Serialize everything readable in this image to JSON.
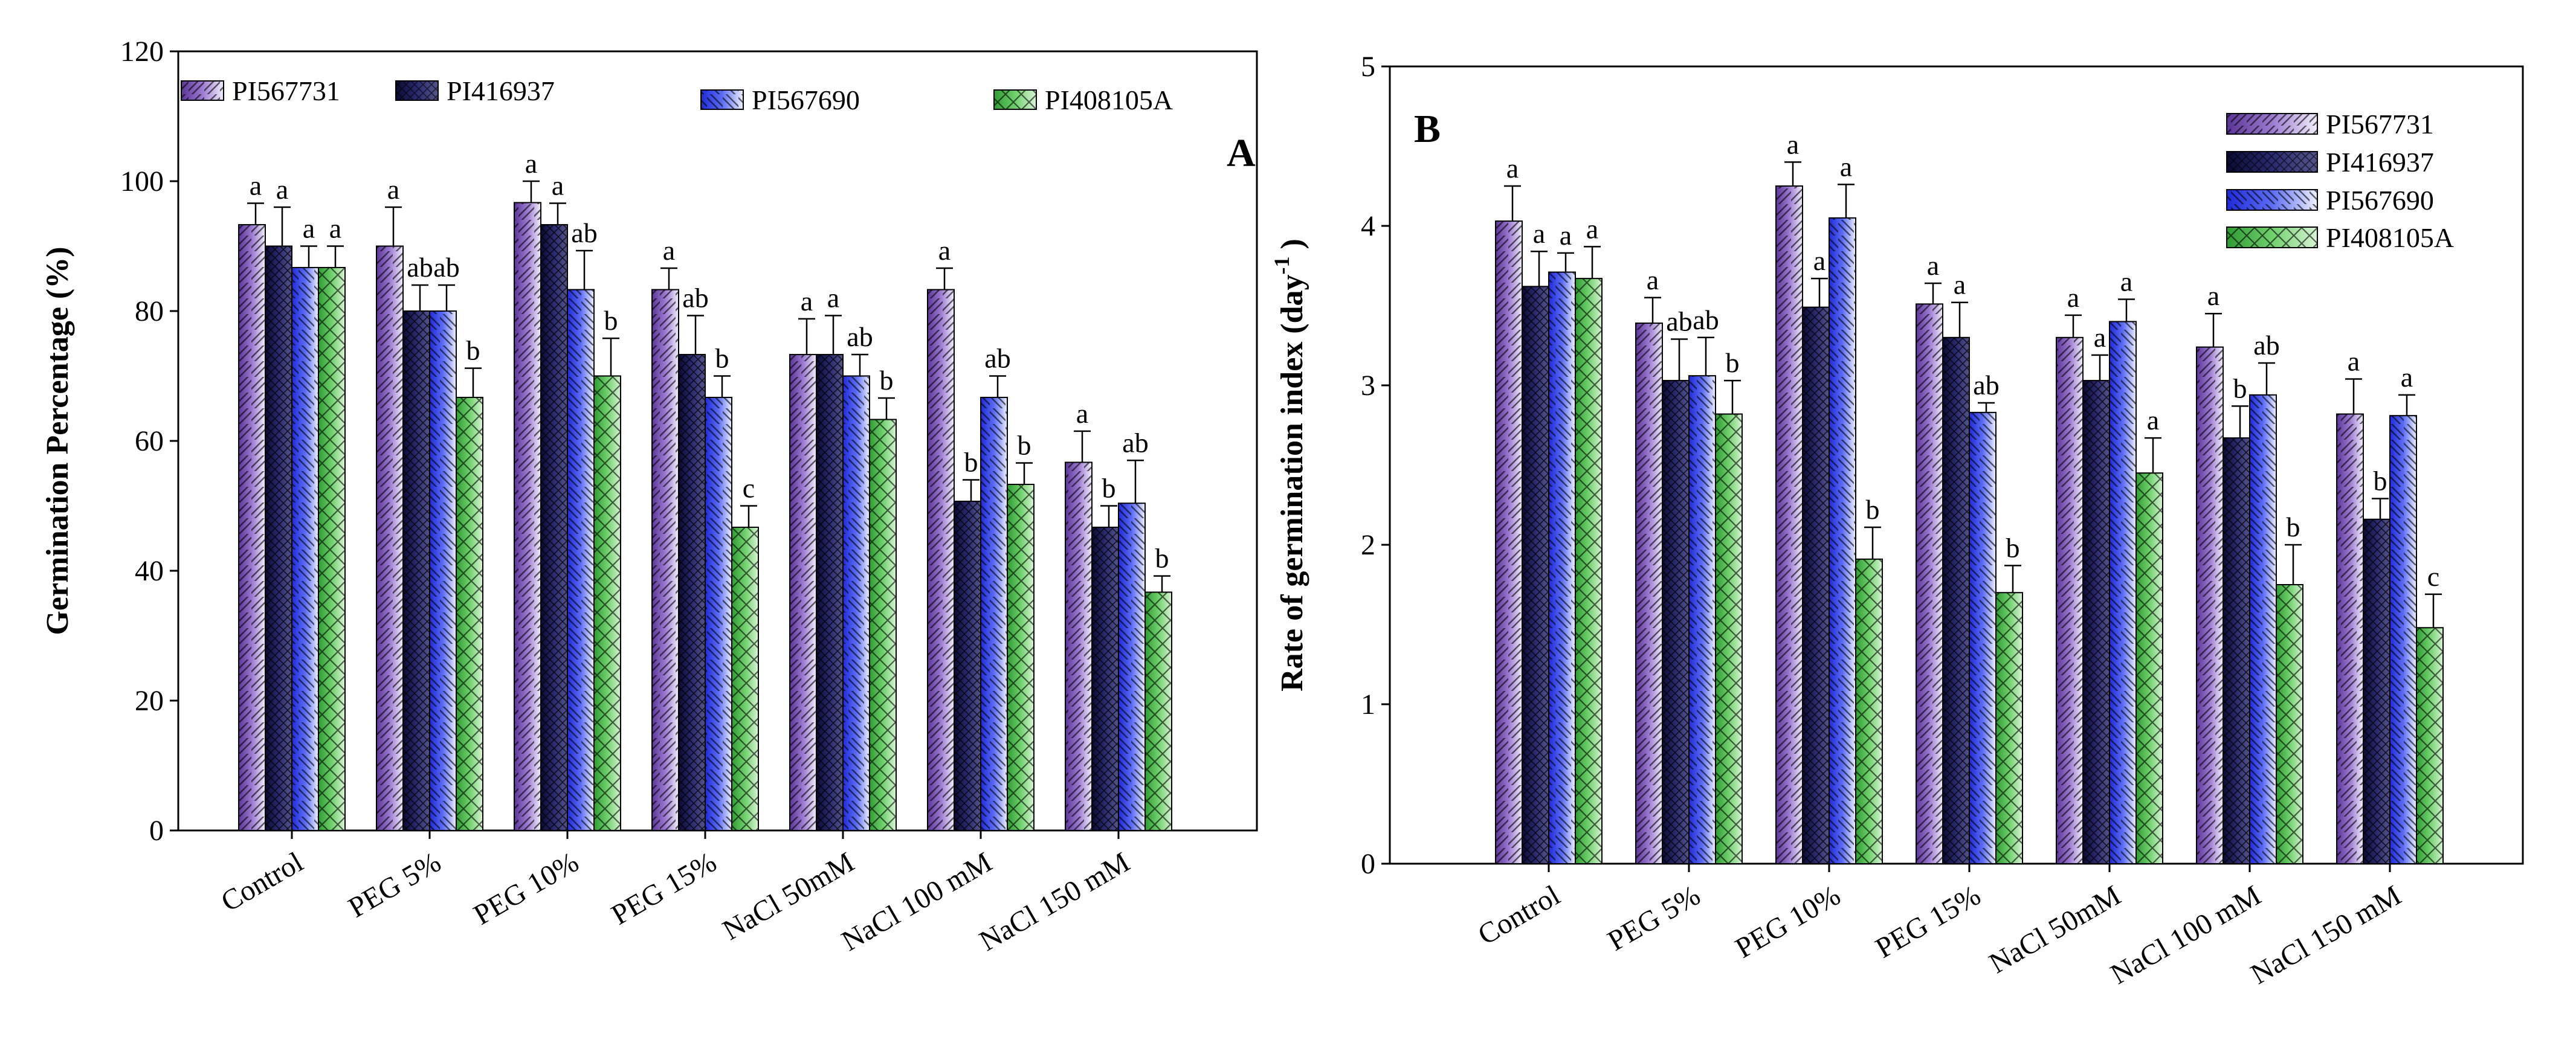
{
  "chart_data": [
    {
      "type": "bar",
      "panel": "A",
      "title": "",
      "xlabel": "",
      "ylabel": "Germination Percentage (%)",
      "ylim": [
        0,
        120
      ],
      "yticks": [
        "0",
        "20",
        "40",
        "60",
        "80",
        "100",
        "120"
      ],
      "categories": [
        "Control",
        "PEG 5%",
        "PEG 10%",
        "PEG 15%",
        "NaCl  50mM",
        "NaCl  100  mM",
        "NaCl  150  mM"
      ],
      "legend_position": "top",
      "series": [
        {
          "name": "PI567731",
          "values": [
            93.3,
            90,
            96.7,
            83.3,
            73.3,
            83.3,
            56.7
          ],
          "errors": [
            3.3,
            6,
            3.3,
            3.3,
            5.5,
            3.3,
            4.8
          ],
          "letters": [
            "a",
            "a",
            "a",
            "a",
            "a",
            "a",
            "a"
          ]
        },
        {
          "name": "PI416937",
          "values": [
            90,
            80,
            93.3,
            73.3,
            73.3,
            50.7,
            46.7
          ],
          "errors": [
            6,
            4,
            3.3,
            6,
            6,
            3.3,
            3.3
          ],
          "letters": [
            "a",
            "ab",
            "a",
            "ab",
            "a",
            "b",
            "b"
          ]
        },
        {
          "name": "PI567690",
          "values": [
            86.7,
            80,
            83.3,
            66.7,
            70,
            66.7,
            50.4
          ],
          "errors": [
            3.3,
            4,
            6,
            3.3,
            3.3,
            3.3,
            6.6
          ],
          "letters": [
            "a",
            "ab",
            "ab",
            "b",
            "ab",
            "ab",
            "ab"
          ]
        },
        {
          "name": "PI408105A",
          "values": [
            86.7,
            66.7,
            70,
            46.7,
            63.3,
            53.3,
            36.7
          ],
          "errors": [
            3.3,
            4.5,
            5.8,
            3.3,
            3.3,
            3.3,
            2.5
          ],
          "letters": [
            "a",
            "b",
            "b",
            "c",
            "b",
            "b",
            "b"
          ]
        }
      ]
    },
    {
      "type": "bar",
      "panel": "B",
      "title": "",
      "xlabel": "",
      "ylabel": "Rate of germination index (day-1)",
      "ylabel_main": "Rate of germination index (day",
      "ylabel_sup": "-1",
      "ylabel_close": ")",
      "ylim": [
        0,
        5
      ],
      "yticks": [
        "0",
        "1",
        "2",
        "3",
        "4",
        "5"
      ],
      "categories": [
        "Control",
        "PEG 5%",
        "PEG 10%",
        "PEG 15%",
        "NaCl  50mM",
        "NaCl  100  mM",
        "NaCl  150  mM"
      ],
      "legend_position": "top-right",
      "series": [
        {
          "name": "PI567731",
          "values": [
            4.03,
            3.39,
            4.25,
            3.51,
            3.3,
            3.24,
            2.82
          ],
          "errors": [
            0.22,
            0.16,
            0.15,
            0.13,
            0.14,
            0.21,
            0.22
          ],
          "letters": [
            "a",
            "a",
            "a",
            "a",
            "a",
            "a",
            "a"
          ]
        },
        {
          "name": "PI416937",
          "values": [
            3.62,
            3.03,
            3.49,
            3.3,
            3.03,
            2.67,
            2.16
          ],
          "errors": [
            0.22,
            0.26,
            0.18,
            0.22,
            0.16,
            0.2,
            0.13
          ],
          "letters": [
            "a",
            "ab",
            "a",
            "a",
            "a",
            "b",
            "b"
          ]
        },
        {
          "name": "PI567690",
          "values": [
            3.71,
            3.06,
            4.05,
            2.83,
            3.4,
            2.94,
            2.81
          ],
          "errors": [
            0.12,
            0.24,
            0.21,
            0.06,
            0.14,
            0.2,
            0.13
          ],
          "letters": [
            "a",
            "ab",
            "a",
            "ab",
            "a",
            "ab",
            "a"
          ]
        },
        {
          "name": "PI408105A",
          "values": [
            3.67,
            2.82,
            1.91,
            1.7,
            2.45,
            1.75,
            1.48
          ],
          "errors": [
            0.2,
            0.21,
            0.2,
            0.17,
            0.22,
            0.25,
            0.21
          ],
          "letters": [
            "a",
            "b",
            "b",
            "b",
            "a",
            "b",
            "c"
          ]
        }
      ]
    }
  ],
  "panel_labels": {
    "a": "A",
    "b": "B"
  },
  "colors": {
    "s0": "#7b55b0",
    "s1": "#1c1c57",
    "s2": "#2d3dea",
    "s3": "#59c65b",
    "s0_light": "#ece4fa",
    "s2_light": "#e2e7fc"
  }
}
